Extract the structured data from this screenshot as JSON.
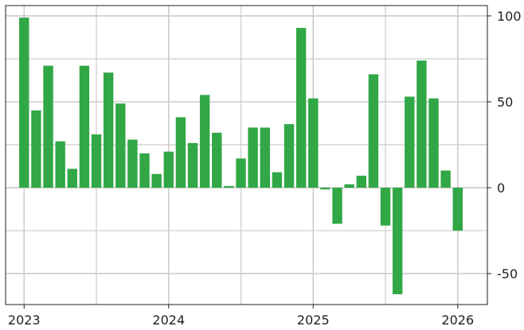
{
  "chart_data": {
    "type": "bar",
    "x_axis": {
      "type": "date",
      "ticks": [
        "2023",
        "2024",
        "2025",
        "2026"
      ],
      "range": [
        "2022-11-15",
        "2026-03-15"
      ]
    },
    "y_axis": {
      "position": "right",
      "ticks": [
        100,
        50,
        0,
        -50
      ],
      "ylim": [
        -68,
        106
      ]
    },
    "grid": true,
    "legend": "none",
    "series": [
      {
        "color": "#31a745",
        "points": [
          {
            "x": "2023-01",
            "y": 99
          },
          {
            "x": "2023-02",
            "y": 45
          },
          {
            "x": "2023-03",
            "y": 71
          },
          {
            "x": "2023-04",
            "y": 27
          },
          {
            "x": "2023-05",
            "y": 11
          },
          {
            "x": "2023-06",
            "y": 71
          },
          {
            "x": "2023-07",
            "y": 31
          },
          {
            "x": "2023-08",
            "y": 67
          },
          {
            "x": "2023-09",
            "y": 49
          },
          {
            "x": "2023-10",
            "y": 28
          },
          {
            "x": "2023-11",
            "y": 20
          },
          {
            "x": "2023-12",
            "y": 8
          },
          {
            "x": "2024-01",
            "y": 21
          },
          {
            "x": "2024-02",
            "y": 41
          },
          {
            "x": "2024-03",
            "y": 26
          },
          {
            "x": "2024-04",
            "y": 54
          },
          {
            "x": "2024-05",
            "y": 32
          },
          {
            "x": "2024-06",
            "y": 1
          },
          {
            "x": "2024-07",
            "y": 17
          },
          {
            "x": "2024-08",
            "y": 35
          },
          {
            "x": "2024-09",
            "y": 35
          },
          {
            "x": "2024-10",
            "y": 9
          },
          {
            "x": "2024-11",
            "y": 37
          },
          {
            "x": "2024-12",
            "y": 93
          },
          {
            "x": "2025-01",
            "y": 52
          },
          {
            "x": "2025-02",
            "y": -1
          },
          {
            "x": "2025-03",
            "y": -21
          },
          {
            "x": "2025-04",
            "y": 2
          },
          {
            "x": "2025-05",
            "y": 7
          },
          {
            "x": "2025-06",
            "y": 66
          },
          {
            "x": "2025-07",
            "y": -22
          },
          {
            "x": "2025-08",
            "y": -62
          },
          {
            "x": "2025-09",
            "y": 53
          },
          {
            "x": "2025-10",
            "y": 74
          },
          {
            "x": "2025-11",
            "y": 52
          },
          {
            "x": "2025-12",
            "y": 10
          },
          {
            "x": "2026-01",
            "y": -25
          }
        ]
      }
    ]
  }
}
